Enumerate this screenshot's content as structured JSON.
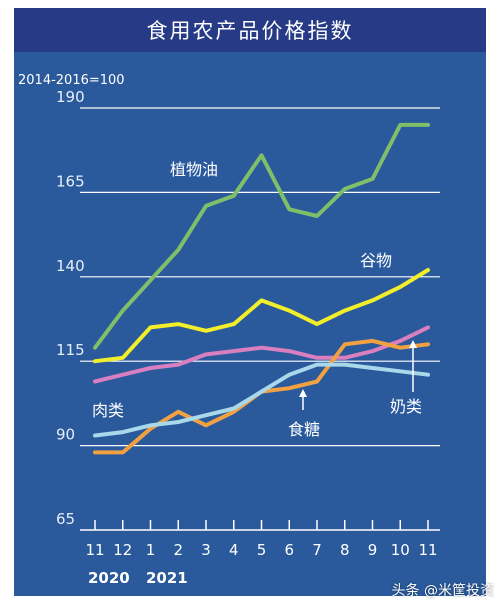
{
  "title": "食用农产品价格指数",
  "watermark": "头条 @米筐投资",
  "chart_data": {
    "type": "line",
    "base_label": "2014-2016=100",
    "x": [
      "11",
      "12",
      "1",
      "2",
      "3",
      "4",
      "5",
      "6",
      "7",
      "8",
      "9",
      "10",
      "11"
    ],
    "years": [
      "2020",
      "2021"
    ],
    "ylim": [
      65,
      190
    ],
    "yticks": [
      65,
      90,
      115,
      140,
      165,
      190
    ],
    "grid": true,
    "series": [
      {
        "name": "植物油",
        "color": "#7fbf6a",
        "values": [
          119,
          130,
          139,
          148,
          161,
          164,
          176,
          160,
          158,
          166,
          169,
          185,
          185
        ]
      },
      {
        "name": "谷物",
        "color": "#f2ee2a",
        "values": [
          115,
          116,
          125,
          126,
          124,
          126,
          133,
          130,
          126,
          130,
          133,
          137,
          142
        ]
      },
      {
        "name": "肉类",
        "color": "#d97fbf",
        "values": [
          109,
          111,
          113,
          114,
          117,
          118,
          119,
          118,
          116,
          116,
          118,
          121,
          125
        ]
      },
      {
        "name": "食糖",
        "color": "#f2a142",
        "values": [
          88,
          88,
          95,
          100,
          96,
          100,
          106,
          107,
          109,
          120,
          121,
          119,
          120
        ]
      },
      {
        "name": "奶类",
        "color": "#a8d8ea",
        "values": [
          93,
          94,
          96,
          97,
          99,
          101,
          106,
          111,
          114,
          114,
          113,
          112,
          111
        ]
      }
    ]
  }
}
